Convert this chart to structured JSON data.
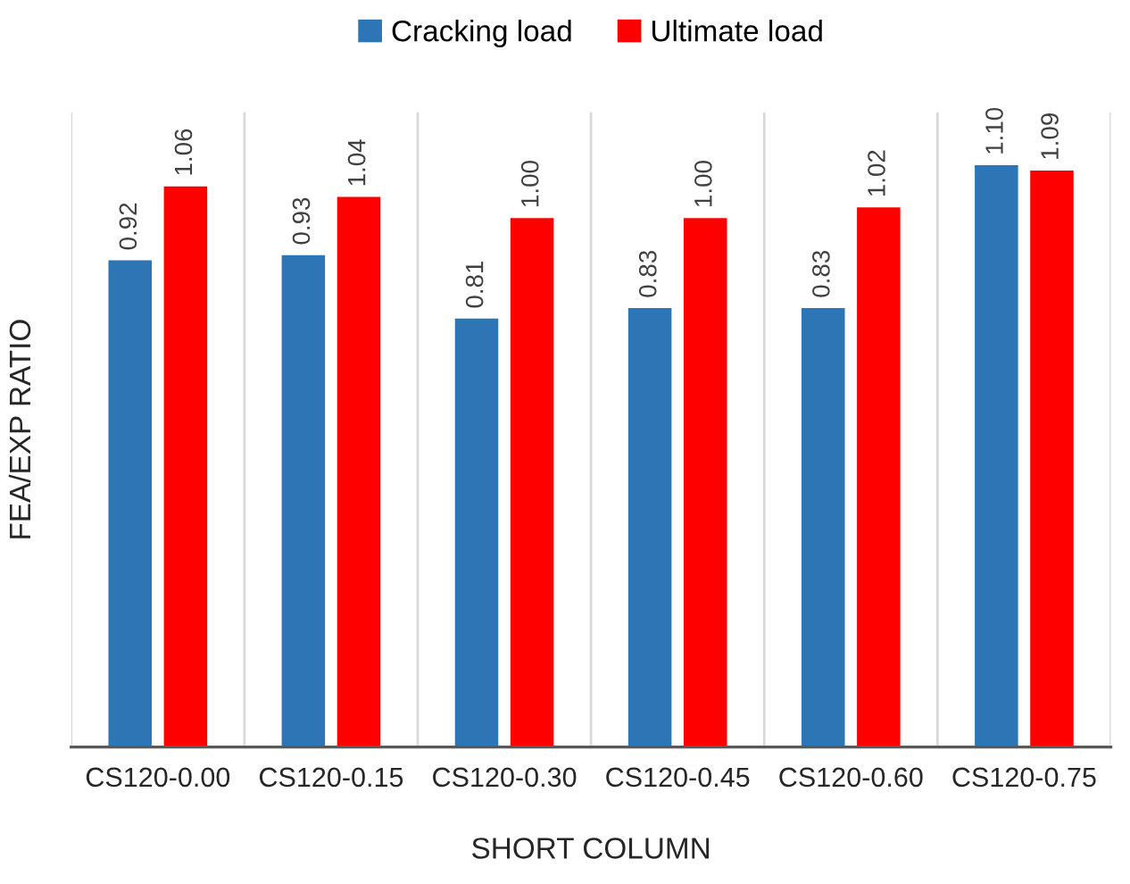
{
  "chart_data": {
    "type": "bar",
    "xlabel": "SHORT COLUMN",
    "ylabel": "FEA/EXP RATIO",
    "categories": [
      "CS120-0.00",
      "CS120-0.15",
      "CS120-0.30",
      "CS120-0.45",
      "CS120-0.60",
      "CS120-0.75"
    ],
    "series": [
      {
        "name": "Cracking load",
        "color": "#2e75b6",
        "values": [
          0.92,
          0.93,
          0.81,
          0.83,
          0.83,
          1.1
        ],
        "value_labels": [
          "0.92",
          "0.93",
          "0.81",
          "0.83",
          "0.83",
          "1.10"
        ]
      },
      {
        "name": "Ultimate load",
        "color": "#ff0000",
        "values": [
          1.06,
          1.04,
          1.0,
          1.0,
          1.02,
          1.09
        ],
        "value_labels": [
          "1.06",
          "1.04",
          "1.00",
          "1.00",
          "1.02",
          "1.09"
        ]
      }
    ],
    "ylim": [
      0,
      1.2
    ],
    "tick_labels": "x",
    "grid": "x",
    "legend": "top"
  }
}
